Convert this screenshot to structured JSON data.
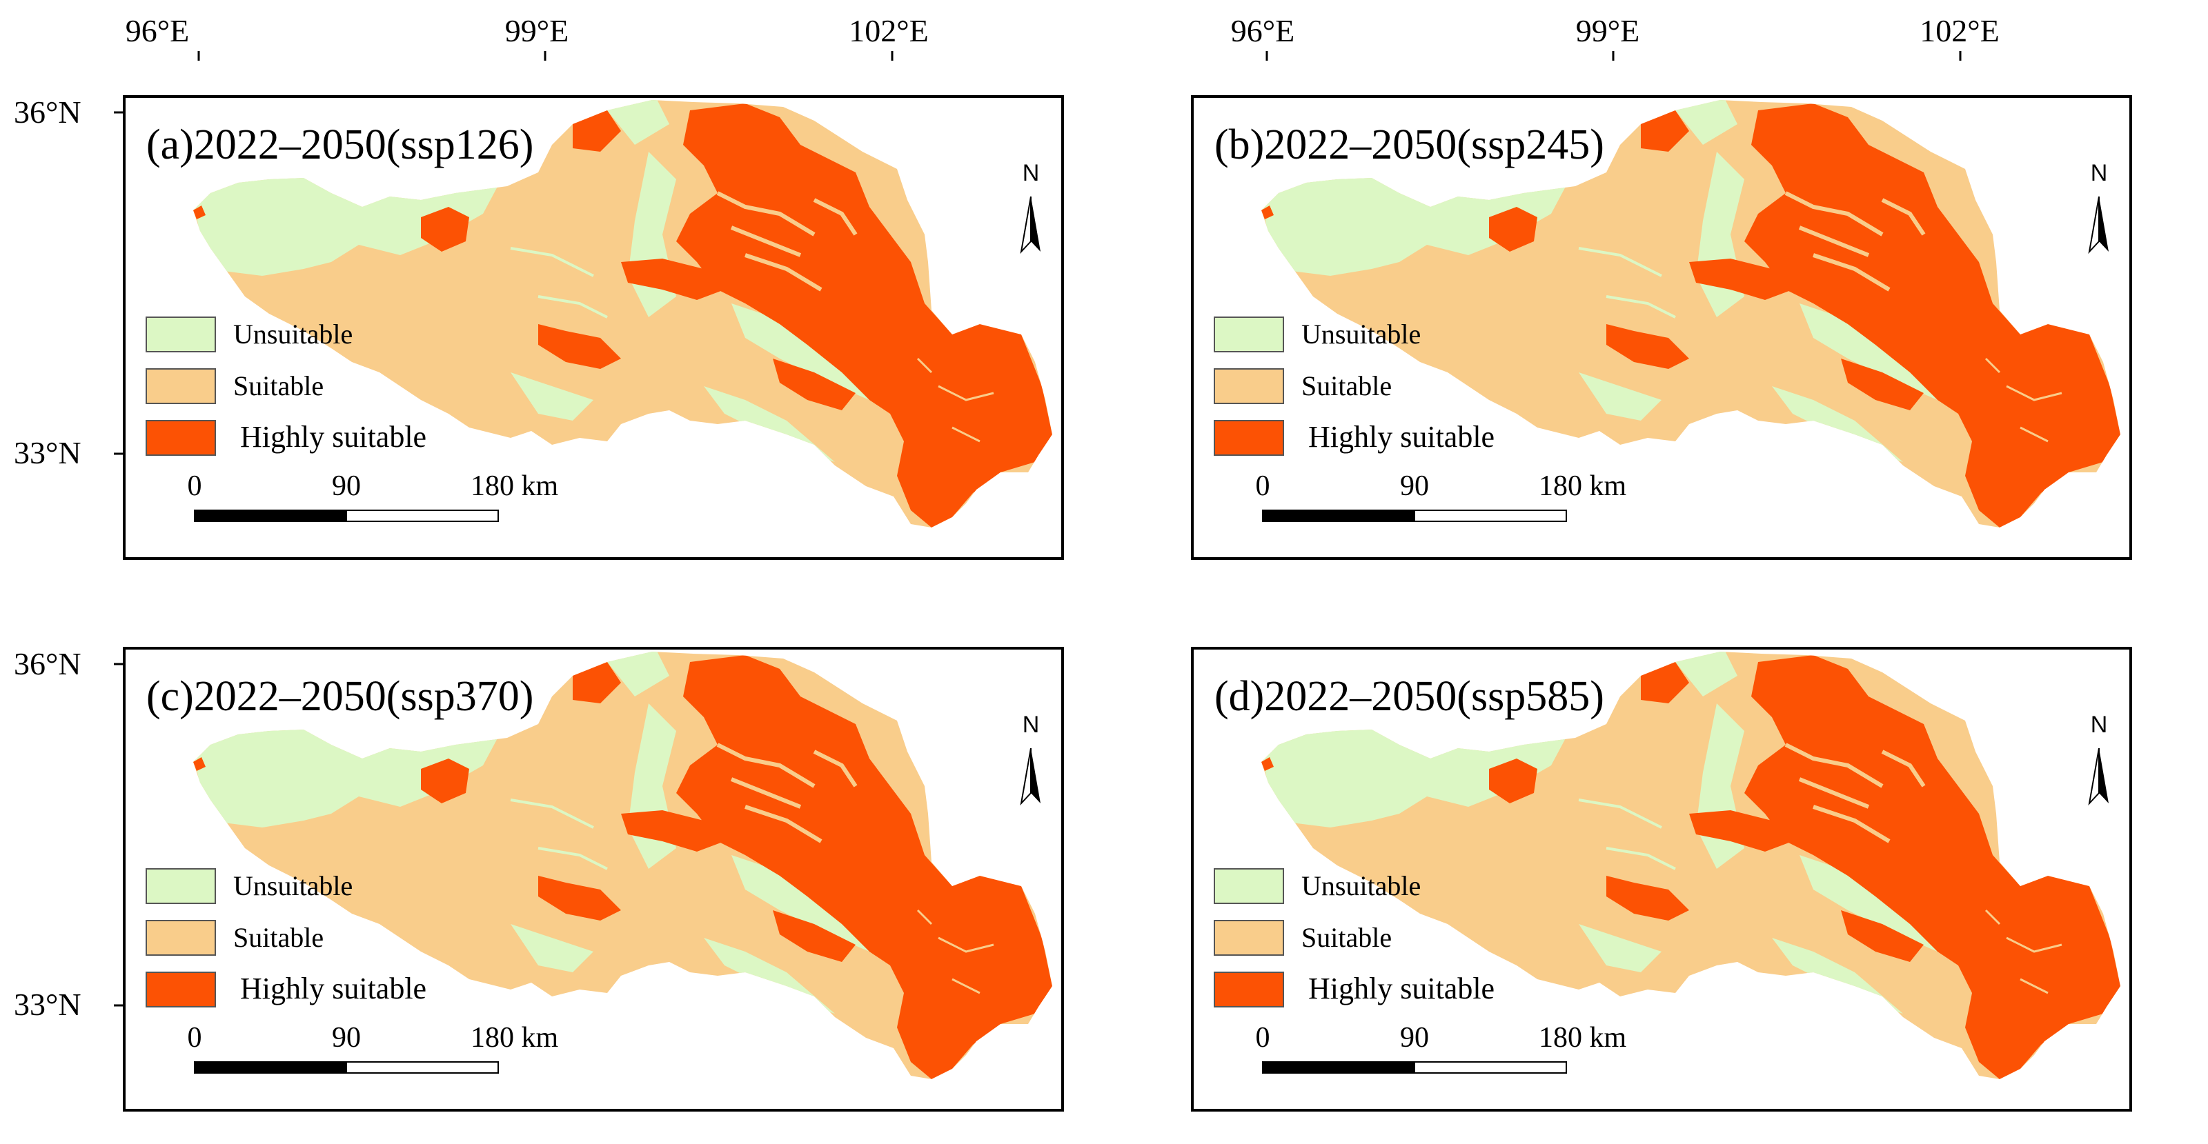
{
  "colors": {
    "unsuitable": "#dcf7c4",
    "suitable": "#f9cd8b",
    "highly_suitable": "#fc5204",
    "frame": "#000000"
  },
  "axes": {
    "lon_labels": [
      "96°E",
      "99°E",
      "102°E"
    ],
    "lat_labels": [
      "36°N",
      "33°N"
    ]
  },
  "legend": {
    "unsuitable": "Unsuitable",
    "suitable": "Suitable",
    "highly_suitable": "Highly suitable"
  },
  "scalebar": {
    "tick0": "0",
    "tick1": "90",
    "tick2": "180 km"
  },
  "north": "N",
  "panels": [
    {
      "title": "(a)2022–2050(ssp126)"
    },
    {
      "title": "(b)2022–2050(ssp245)"
    },
    {
      "title": "(c)2022–2050(ssp370)"
    },
    {
      "title": "(d)2022–2050(ssp585)"
    }
  ]
}
